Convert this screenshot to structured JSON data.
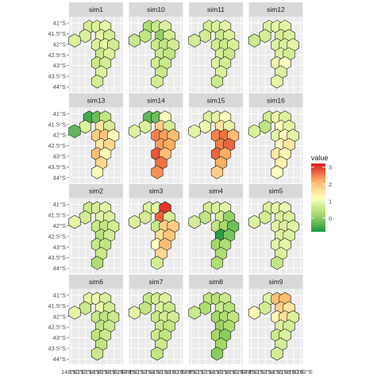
{
  "chart_data": {
    "type": "heatmap",
    "subtype": "faceted-hexagon-map",
    "panels": [
      "sim1",
      "sim10",
      "sim11",
      "sim12",
      "sim13",
      "sim14",
      "sim15",
      "sim16",
      "sim2",
      "sim3",
      "sim4",
      "sim5",
      "sim6",
      "sim7",
      "sim8",
      "sim9"
    ],
    "cols": 4,
    "rows": 4,
    "y_ticks": [
      "41°S",
      "41.5°S",
      "42°S",
      "42.5°S",
      "43°S",
      "43.5°S",
      "44°S"
    ],
    "x_tick_texts": [
      "148°E",
      "150°E",
      "152°E",
      "154°E",
      "156°E",
      "158°E",
      "160°E",
      "162°E"
    ],
    "legend": {
      "title": "value",
      "ticks": [
        3,
        2,
        1,
        0
      ],
      "range": [
        -0.8,
        3.2
      ],
      "colors": [
        "#1a9641",
        "#a6d96a",
        "#ffffbf",
        "#fdae61",
        "#d7191c"
      ],
      "placement": "right"
    },
    "cells": [
      [
        0.55,
        0.1
      ],
      [
        0.85,
        0.1
      ],
      [
        1.15,
        0.1
      ],
      [
        0.4,
        0.4
      ],
      [
        1.0,
        0.4
      ],
      [
        1.3,
        0.4
      ],
      [
        0.85,
        0.7
      ],
      [
        1.15,
        0.7
      ],
      [
        1.45,
        0.7
      ],
      [
        1.0,
        1.0
      ],
      [
        1.3,
        1.0
      ],
      [
        0.85,
        1.3
      ],
      [
        1.15,
        1.3
      ],
      [
        1.0,
        1.6
      ],
      [
        0.85,
        1.9
      ],
      [
        0.0,
        0.55
      ]
    ],
    "values": {
      "sim1": [
        0.7,
        0.8,
        0.9,
        0.8,
        0.9,
        0.7,
        0.8,
        0.9,
        0.7,
        0.6,
        0.8,
        0.6,
        0.7,
        0.8,
        0.7,
        0.8
      ],
      "sim10": [
        0.3,
        0.6,
        0.8,
        0.5,
        0.1,
        0.7,
        0.6,
        0.5,
        0.7,
        0.6,
        0.5,
        0.7,
        0.6,
        0.6,
        0.7,
        0.6
      ],
      "sim11": [
        0.7,
        0.8,
        0.9,
        0.7,
        0.6,
        0.8,
        0.7,
        0.6,
        0.8,
        0.7,
        0.6,
        0.8,
        0.7,
        0.8,
        0.6,
        0.7
      ],
      "sim12": [
        0.8,
        0.9,
        0.9,
        0.7,
        0.7,
        0.8,
        0.8,
        0.8,
        0.9,
        0.8,
        0.7,
        1.0,
        1.2,
        0.8,
        0.9,
        0.6
      ],
      "sim13": [
        -0.5,
        -0.2,
        0.5,
        0.8,
        1.5,
        0.7,
        1.8,
        1.9,
        1.2,
        1.5,
        1.7,
        2.0,
        1.3,
        1.7,
        1.1,
        -0.3
      ],
      "sim14": [
        -0.3,
        -0.2,
        1.2,
        0.8,
        1.8,
        0.7,
        2.5,
        2.3,
        2.0,
        2.3,
        2.2,
        2.8,
        2.0,
        2.6,
        2.4,
        0.8
      ],
      "sim15": [
        0.8,
        0.9,
        1.2,
        1.0,
        1.5,
        0.9,
        2.5,
        2.6,
        2.0,
        2.5,
        2.7,
        2.7,
        2.2,
        2.2,
        1.8,
        0.9
      ],
      "sim16": [
        0.7,
        1.0,
        0.8,
        0.5,
        1.2,
        0.9,
        0.9,
        1.3,
        0.9,
        1.2,
        1.5,
        1.5,
        1.3,
        1.4,
        1.2,
        0.8
      ],
      "sim2": [
        0.6,
        0.7,
        0.9,
        0.7,
        0.9,
        0.8,
        0.6,
        0.5,
        0.7,
        0.4,
        0.7,
        0.6,
        0.5,
        0.6,
        0.3,
        0.9
      ],
      "sim3": [
        0.8,
        0.9,
        3.0,
        0.7,
        2.7,
        0.7,
        0.6,
        1.8,
        1.8,
        1.6,
        1.9,
        1.2,
        2.0,
        1.7,
        0.7,
        0.8
      ],
      "sim4": [
        0.7,
        0.8,
        0.9,
        0.5,
        0.7,
        0.1,
        0.5,
        0.2,
        -0.2,
        -0.7,
        -0.1,
        0.2,
        0.3,
        0.3,
        0.3,
        0.7
      ],
      "sim5": [
        0.8,
        0.9,
        1.0,
        0.7,
        0.8,
        0.8,
        0.9,
        0.8,
        0.9,
        0.8,
        0.8,
        0.9,
        0.9,
        0.8,
        0.5,
        0.8
      ],
      "sim6": [
        0.9,
        1.0,
        0.8,
        0.6,
        1.0,
        0.7,
        0.6,
        0.5,
        0.6,
        0.5,
        0.6,
        0.5,
        0.6,
        0.5,
        0.6,
        0.9
      ],
      "sim7": [
        0.6,
        0.7,
        0.8,
        0.5,
        0.8,
        0.6,
        0.6,
        0.7,
        0.7,
        0.6,
        0.5,
        0.6,
        0.5,
        0.6,
        0.5,
        0.9
      ],
      "sim8": [
        0.5,
        0.4,
        0.6,
        0.3,
        0.6,
        0.4,
        0.2,
        0.3,
        0.5,
        0.1,
        0.3,
        0.2,
        0.0,
        0.2,
        0.0,
        0.6
      ],
      "sim9": [
        0.9,
        2.0,
        2.0,
        0.7,
        1.8,
        1.5,
        1.3,
        1.6,
        0.8,
        0.8,
        0.7,
        0.6,
        0.8,
        0.7,
        0.7,
        1.3
      ]
    }
  }
}
